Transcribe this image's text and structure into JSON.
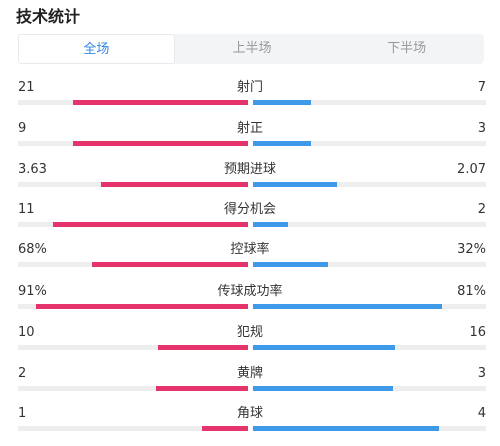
{
  "title": "技术统计",
  "tabs": [
    {
      "label": "全场",
      "active": true
    },
    {
      "label": "上半场",
      "active": false
    },
    {
      "label": "下半场",
      "active": false
    }
  ],
  "colors": {
    "home": "#e5336c",
    "away": "#3e9ae9",
    "accent": "#2f86e6"
  },
  "stats": [
    {
      "label": "射门",
      "home": "21",
      "away": "7",
      "home_fill": 0.76,
      "away_fill": 0.25
    },
    {
      "label": "射正",
      "home": "9",
      "away": "3",
      "home_fill": 0.76,
      "away_fill": 0.25
    },
    {
      "label": "预期进球",
      "home": "3.63",
      "away": "2.07",
      "home_fill": 0.64,
      "away_fill": 0.36
    },
    {
      "label": "得分机会",
      "home": "11",
      "away": "2",
      "home_fill": 0.85,
      "away_fill": 0.15
    },
    {
      "label": "控球率",
      "home": "68%",
      "away": "32%",
      "home_fill": 0.68,
      "away_fill": 0.32
    },
    {
      "label": "传球成功率",
      "home": "91%",
      "away": "81%",
      "home_fill": 0.92,
      "away_fill": 0.81
    },
    {
      "label": "犯规",
      "home": "10",
      "away": "16",
      "home_fill": 0.39,
      "away_fill": 0.61
    },
    {
      "label": "黄牌",
      "home": "2",
      "away": "3",
      "home_fill": 0.4,
      "away_fill": 0.6
    },
    {
      "label": "角球",
      "home": "1",
      "away": "4",
      "home_fill": 0.2,
      "away_fill": 0.8
    }
  ]
}
